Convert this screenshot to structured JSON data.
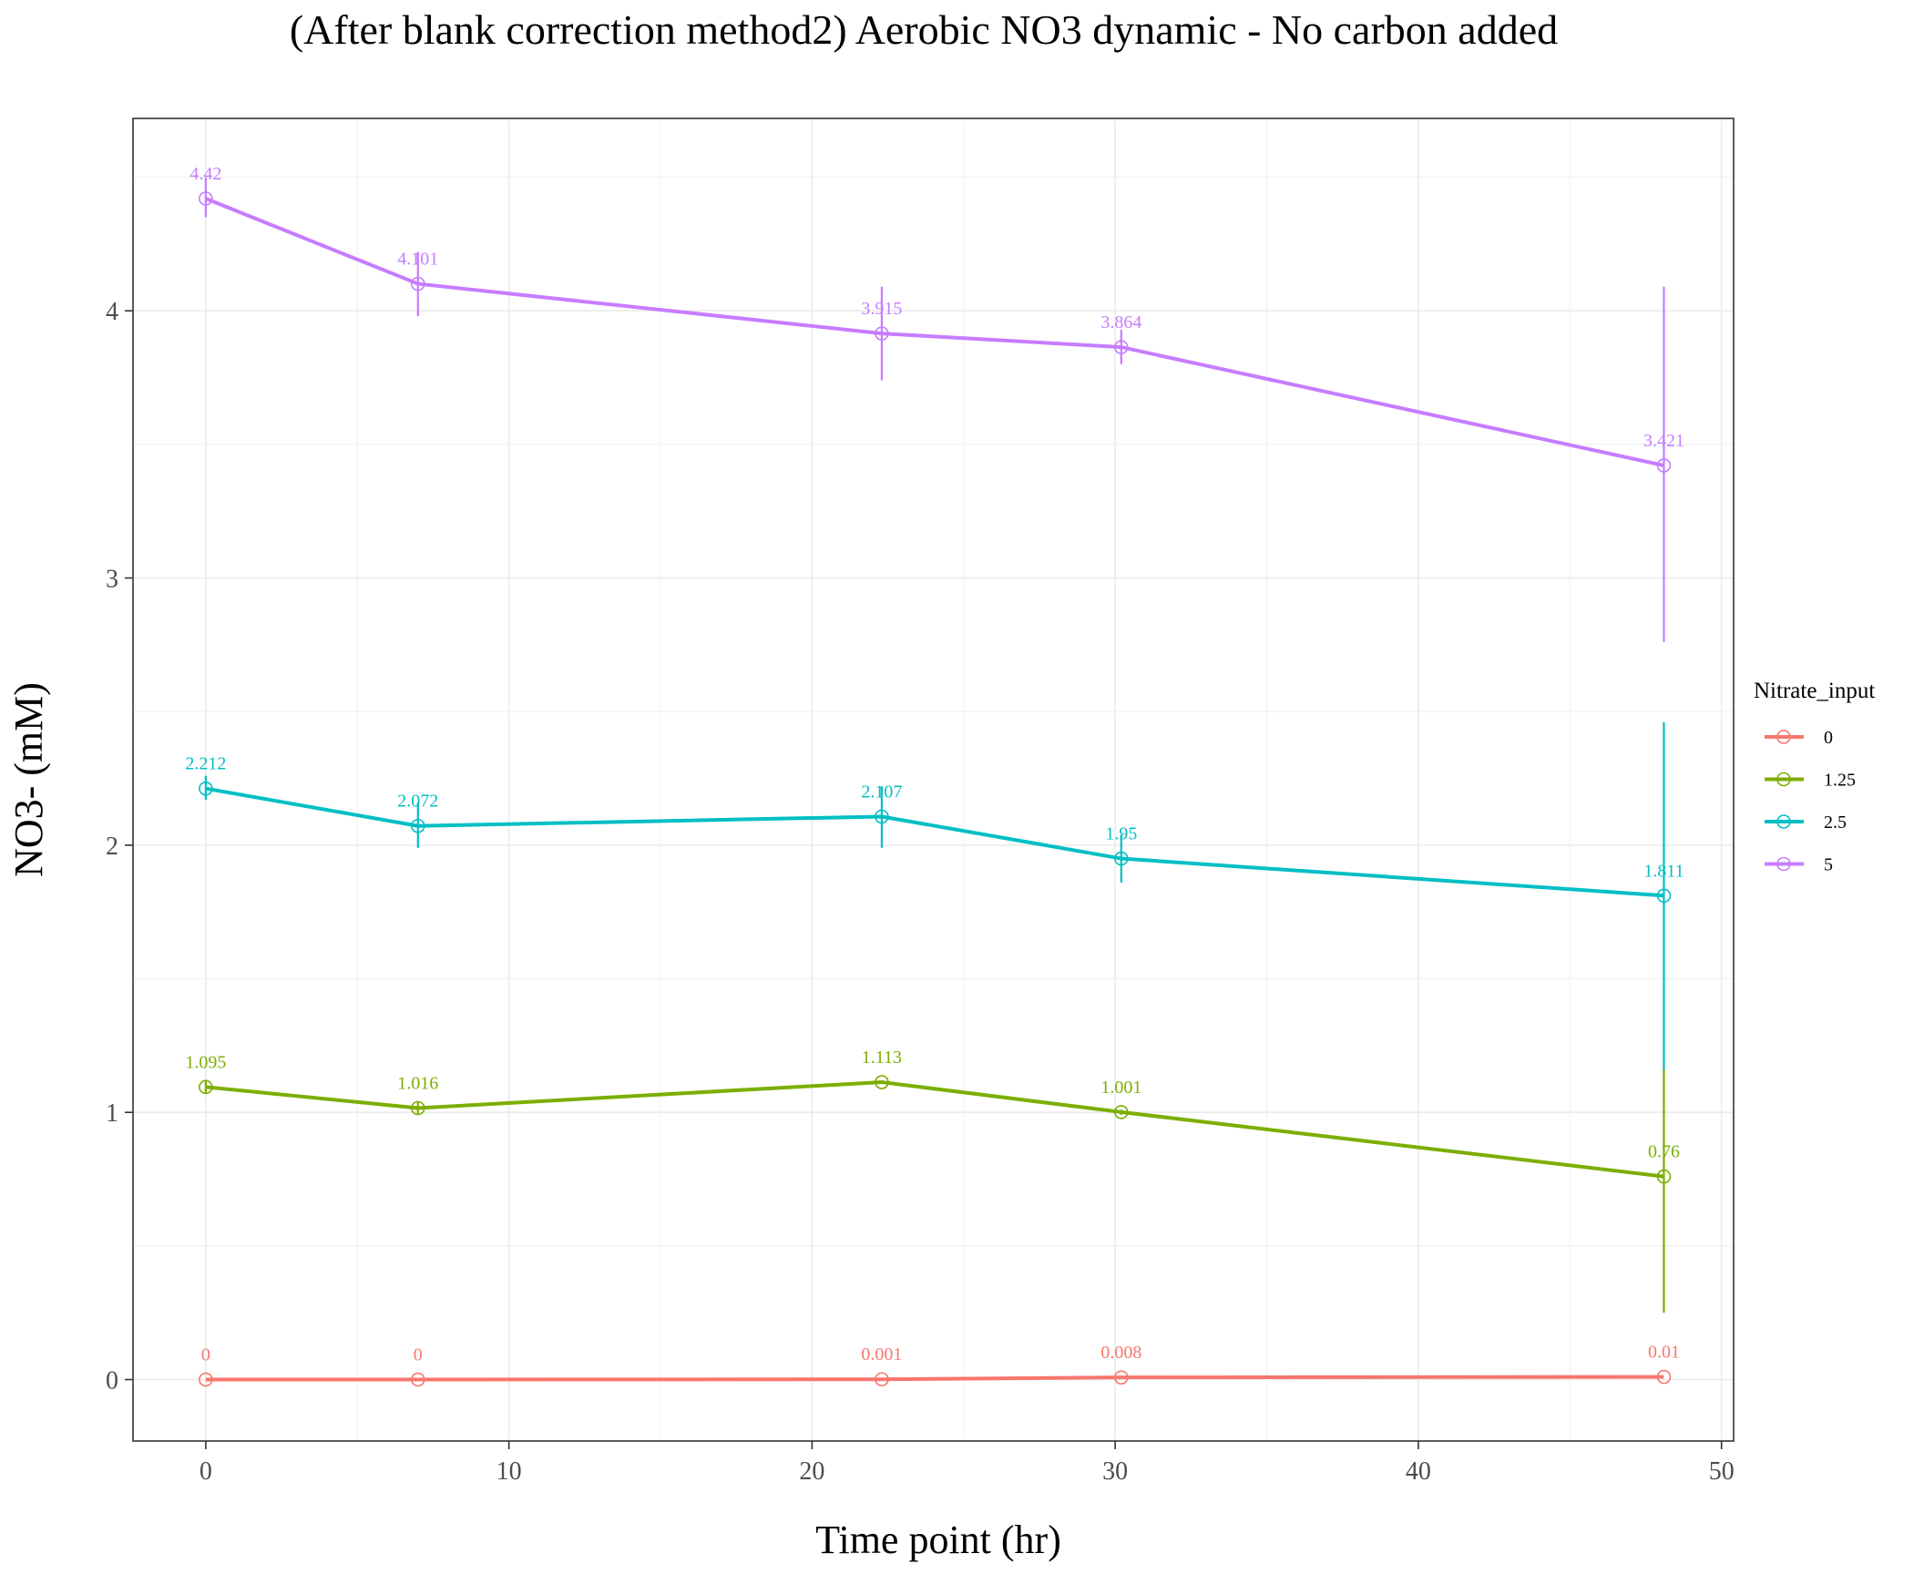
{
  "chart_data": {
    "type": "line",
    "title": "(After blank correction method2) Aerobic NO3 dynamic - No carbon added",
    "xlabel": "Time point (hr)",
    "ylabel": "NO3- (mM)",
    "xlim": [
      -2.4,
      50.4
    ],
    "ylim": [
      -0.23,
      4.72
    ],
    "x_ticks": [
      0,
      10,
      20,
      30,
      40,
      50
    ],
    "y_ticks": [
      0,
      1,
      2,
      3,
      4
    ],
    "grid": true,
    "legend": {
      "title": "Nitrate_input",
      "position": "right"
    },
    "x": [
      0,
      7,
      22.3,
      30.2,
      48.1
    ],
    "series": [
      {
        "name": "0",
        "color": "#F8766D",
        "values": [
          0,
          0,
          0.001,
          0.008,
          0.01
        ],
        "labels": [
          "0",
          "0",
          "0.001",
          "0.008",
          "0.01"
        ],
        "err_low": [
          0,
          0,
          0,
          0,
          0
        ],
        "err_high": [
          0,
          0,
          0,
          0,
          0
        ]
      },
      {
        "name": "1.25",
        "color": "#7CAE00",
        "values": [
          1.095,
          1.016,
          1.113,
          1.001,
          0.76
        ],
        "labels": [
          "1.095",
          "1.016",
          "1.113",
          "1.001",
          "0.76"
        ],
        "err_low": [
          1.07,
          0.99,
          1.11,
          0.99,
          0.25
        ],
        "err_high": [
          1.12,
          1.04,
          1.12,
          1.01,
          1.17
        ]
      },
      {
        "name": "2.5",
        "color": "#00BFC4",
        "values": [
          2.212,
          2.072,
          2.107,
          1.95,
          1.811
        ],
        "labels": [
          "2.212",
          "2.072",
          "2.107",
          "1.95",
          "1.811"
        ],
        "err_low": [
          2.17,
          1.99,
          1.99,
          1.86,
          1.16
        ],
        "err_high": [
          2.26,
          2.16,
          2.22,
          2.04,
          2.46
        ]
      },
      {
        "name": "5",
        "color": "#C77CFF",
        "values": [
          4.42,
          4.101,
          3.915,
          3.864,
          3.421
        ],
        "labels": [
          "4.42",
          "4.101",
          "3.915",
          "3.864",
          "3.421"
        ],
        "err_low": [
          4.35,
          3.98,
          3.74,
          3.8,
          2.76
        ],
        "err_high": [
          4.5,
          4.22,
          4.09,
          3.93,
          4.09
        ]
      }
    ]
  }
}
